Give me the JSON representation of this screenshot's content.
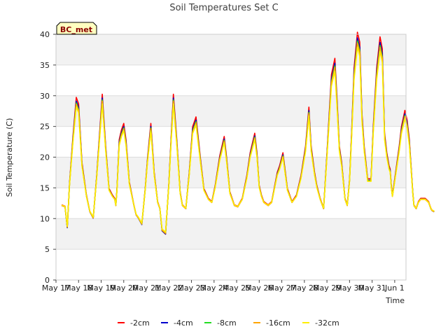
{
  "chart_data": {
    "type": "line",
    "title": "Soil Temperatures Set C",
    "xlabel": "Time",
    "ylabel": "Soil Temperature (C)",
    "station_label": "BC_met",
    "ylim": [
      0,
      40
    ],
    "xlim": [
      "May 17",
      "Jun 1"
    ],
    "yticks": [
      0,
      5,
      10,
      15,
      20,
      25,
      30,
      35,
      40
    ],
    "xticks": [
      "May 17",
      "May 18",
      "May 19",
      "May 20",
      "May 21",
      "May 22",
      "May 23",
      "May 24",
      "May 25",
      "May 26",
      "May 27",
      "May 28",
      "May 29",
      "May 30",
      "May 31",
      "Jun 1"
    ],
    "grid": true,
    "legend_position": "bottom",
    "colors": {
      "band": "#f2f2f2",
      "grid": "#dddddd",
      "-2cm": "#ff0000",
      "-4cm": "#0000cc",
      "-8cm": "#22dd22",
      "-16cm": "#ffa500",
      "-32cm": "#ffee00"
    },
    "x_unit": "days since May 17 00:00",
    "base_profile": {
      "x": [
        0.25,
        0.4,
        0.5,
        0.6,
        0.75,
        0.9,
        1.0,
        1.15,
        1.35,
        1.5,
        1.65,
        1.8,
        1.95,
        2.05,
        2.2,
        2.35,
        2.5,
        2.6,
        2.65,
        2.7,
        2.8,
        2.9,
        3.0,
        3.1,
        3.25,
        3.45,
        3.55,
        3.65,
        3.8,
        3.95,
        4.05,
        4.2,
        4.35,
        4.5,
        4.6,
        4.7,
        4.85,
        5.0,
        5.1,
        5.2,
        5.35,
        5.5,
        5.6,
        5.75,
        5.9,
        6.05,
        6.2,
        6.4,
        6.55,
        6.75,
        6.9,
        7.05,
        7.25,
        7.45,
        7.55,
        7.7,
        7.9,
        8.05,
        8.25,
        8.45,
        8.6,
        8.8,
        8.9,
        9.0,
        9.1,
        9.2,
        9.4,
        9.55,
        9.8,
        9.9,
        10.05,
        10.25,
        10.45,
        10.55,
        10.65,
        10.85,
        11.05,
        11.2,
        11.3,
        11.45,
        11.55,
        11.7,
        11.85,
        12.0,
        12.1,
        12.2,
        12.35,
        12.45,
        12.55,
        12.65,
        12.8,
        12.9,
        13.0,
        13.1,
        13.2,
        13.35,
        13.45,
        13.55,
        13.65,
        13.8,
        13.95,
        14.05,
        14.2,
        14.35,
        14.45,
        14.55,
        14.65,
        14.75
      ],
      "y": [
        12.0,
        11.8,
        8.5,
        15.5,
        22.5,
        28.5,
        27.5,
        18.5,
        13.5,
        11.0,
        10.0,
        16.5,
        24.0,
        29.0,
        21.0,
        14.5,
        13.5,
        13.0,
        12.0,
        14.5,
        22.0,
        23.5,
        24.5,
        22.0,
        15.5,
        12.0,
        10.5,
        10.0,
        9.0,
        14.5,
        19.0,
        24.5,
        17.0,
        12.5,
        11.5,
        8.0,
        7.5,
        15.5,
        22.5,
        29.0,
        22.0,
        14.0,
        12.0,
        11.5,
        17.0,
        24.0,
        25.5,
        19.0,
        14.5,
        13.0,
        12.5,
        15.0,
        19.5,
        22.5,
        19.5,
        14.0,
        12.0,
        11.8,
        13.0,
        16.5,
        20.0,
        23.0,
        20.0,
        15.0,
        13.5,
        12.5,
        12.0,
        12.5,
        17.0,
        18.0,
        20.0,
        14.5,
        12.5,
        13.0,
        13.5,
        16.5,
        21.0,
        27.0,
        21.0,
        17.0,
        15.0,
        13.0,
        11.5,
        20.0,
        26.0,
        32.0,
        34.5,
        28.0,
        21.0,
        18.5,
        13.0,
        12.0,
        16.0,
        24.0,
        33.0,
        38.5,
        37.0,
        26.0,
        21.0,
        16.0,
        16.0,
        24.0,
        33.0,
        37.8,
        36.0,
        23.0,
        20.0,
        18.0
      ]
    },
    "series": [
      {
        "name": "-2cm",
        "offset": 0.6,
        "amp": 1.06
      },
      {
        "name": "-4cm",
        "offset": 0.3,
        "amp": 1.03
      },
      {
        "name": "-8cm",
        "offset": 0.2,
        "amp": 1.01
      },
      {
        "name": "-16cm",
        "offset": 0.1,
        "amp": 1.0
      },
      {
        "name": "-32cm",
        "offset": 0.0,
        "amp": 0.97
      }
    ],
    "tail": {
      "x": [
        14.8,
        14.85,
        14.9,
        15.0,
        15.1,
        15.2,
        15.3,
        15.45,
        15.55,
        15.65,
        15.8,
        15.85,
        15.95,
        16.05,
        16.15,
        16.35,
        16.5,
        16.55,
        16.6,
        16.65,
        16.75
      ],
      "y": [
        17.5,
        15.0,
        13.5,
        16.0,
        18.5,
        21.0,
        24.0,
        26.5,
        25.0,
        22.0,
        14.0,
        12.0,
        11.5,
        12.5,
        13.0,
        13.0,
        12.5,
        12.0,
        11.5,
        11.2,
        11.0
      ]
    }
  },
  "legend": {
    "items": [
      {
        "label": "-2cm",
        "color": "#ff0000"
      },
      {
        "label": "-4cm",
        "color": "#0000cc"
      },
      {
        "label": "-8cm",
        "color": "#22dd22"
      },
      {
        "label": "-16cm",
        "color": "#ffa500"
      },
      {
        "label": "-32cm",
        "color": "#ffee00"
      }
    ]
  }
}
